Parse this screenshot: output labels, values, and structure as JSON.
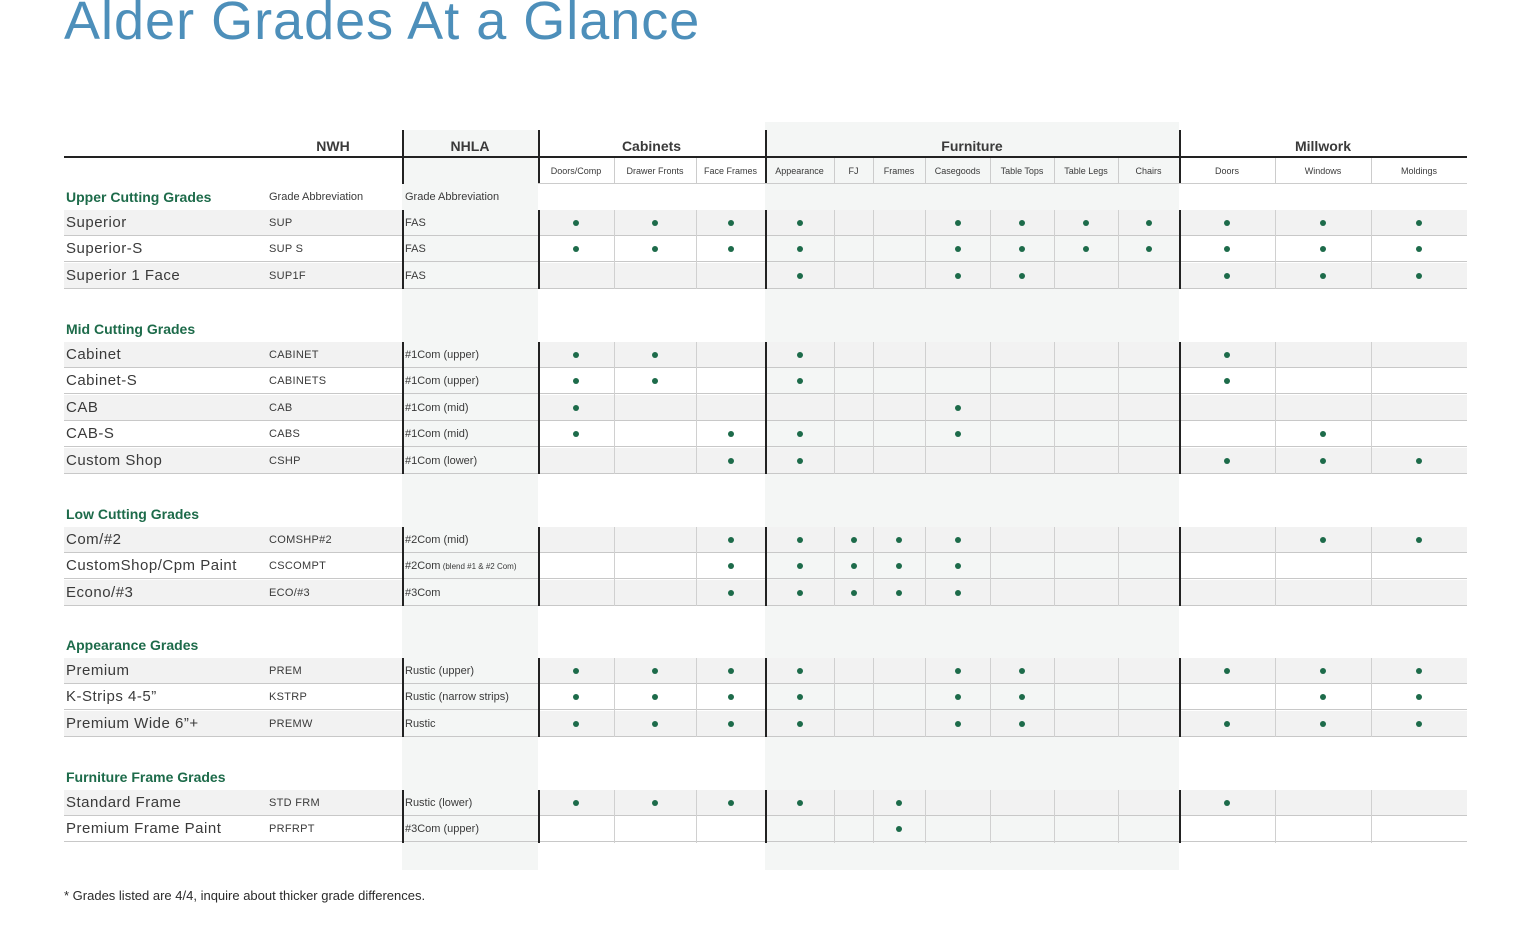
{
  "title": "Alder Grades At a Glance",
  "colors": {
    "title": "#4d8fba",
    "accent": "#1d6b4a",
    "stripe": "#f2f2f2",
    "band": "#f4f6f5"
  },
  "groups": [
    {
      "key": "nwh",
      "label": "NWH"
    },
    {
      "key": "nhla",
      "label": "NHLA"
    },
    {
      "key": "cabinets",
      "label": "Cabinets"
    },
    {
      "key": "furniture",
      "label": "Furniture"
    },
    {
      "key": "millwork",
      "label": "Millwork"
    }
  ],
  "columns": [
    "Doors/Comp",
    "Drawer Fronts",
    "Face Frames",
    "Appearance",
    "FJ",
    "Frames",
    "Casegoods",
    "Table Tops",
    "Table Legs",
    "Chairs",
    "Doors",
    "Windows",
    "Moldings"
  ],
  "abbr_header": {
    "nwh": "Grade Abbreviation",
    "nhla": "Grade Abbreviation"
  },
  "sections": [
    {
      "title": "Upper Cutting Grades",
      "rows": [
        {
          "name": "Superior",
          "nwh": "SUP",
          "nhla": "FAS",
          "nhla_small": "",
          "marks": [
            1,
            1,
            1,
            1,
            0,
            0,
            1,
            1,
            1,
            1,
            1,
            1,
            1
          ]
        },
        {
          "name": "Superior-S",
          "nwh": "SUP S",
          "nhla": "FAS",
          "nhla_small": "",
          "marks": [
            1,
            1,
            1,
            1,
            0,
            0,
            1,
            1,
            1,
            1,
            1,
            1,
            1
          ]
        },
        {
          "name": "Superior 1 Face",
          "nwh": "SUP1F",
          "nhla": "FAS",
          "nhla_small": "",
          "marks": [
            0,
            0,
            0,
            1,
            0,
            0,
            1,
            1,
            0,
            0,
            1,
            1,
            1
          ]
        }
      ]
    },
    {
      "title": "Mid Cutting Grades",
      "rows": [
        {
          "name": "Cabinet",
          "nwh": "CABINET",
          "nhla": "#1Com (upper)",
          "nhla_small": "",
          "marks": [
            1,
            1,
            0,
            1,
            0,
            0,
            0,
            0,
            0,
            0,
            1,
            0,
            0
          ]
        },
        {
          "name": "Cabinet-S",
          "nwh": "CABINETS",
          "nhla": "#1Com (upper)",
          "nhla_small": "",
          "marks": [
            1,
            1,
            0,
            1,
            0,
            0,
            0,
            0,
            0,
            0,
            1,
            0,
            0
          ]
        },
        {
          "name": "CAB",
          "nwh": "CAB",
          "nhla": "#1Com (mid)",
          "nhla_small": "",
          "marks": [
            1,
            0,
            0,
            0,
            0,
            0,
            1,
            0,
            0,
            0,
            0,
            0,
            0
          ]
        },
        {
          "name": "CAB-S",
          "nwh": "CABS",
          "nhla": "#1Com (mid)",
          "nhla_small": "",
          "marks": [
            1,
            0,
            1,
            1,
            0,
            0,
            1,
            0,
            0,
            0,
            0,
            1,
            0
          ]
        },
        {
          "name": "Custom Shop",
          "nwh": "CSHP",
          "nhla": "#1Com (lower)",
          "nhla_small": "",
          "marks": [
            0,
            0,
            1,
            1,
            0,
            0,
            0,
            0,
            0,
            0,
            1,
            1,
            1
          ]
        }
      ]
    },
    {
      "title": "Low Cutting Grades",
      "rows": [
        {
          "name": "Com/#2",
          "nwh": "COMSHP#2",
          "nhla": "#2Com (mid)",
          "nhla_small": "",
          "marks": [
            0,
            0,
            1,
            1,
            1,
            1,
            1,
            0,
            0,
            0,
            0,
            1,
            1
          ]
        },
        {
          "name": "CustomShop/Cpm Paint",
          "nwh": "CSCOMPT",
          "nhla": "#2Com",
          "nhla_small": "(blend #1 & #2 Com)",
          "marks": [
            0,
            0,
            1,
            1,
            1,
            1,
            1,
            0,
            0,
            0,
            0,
            0,
            0
          ]
        },
        {
          "name": "Econo/#3",
          "nwh": "ECO/#3",
          "nhla": "#3Com",
          "nhla_small": "",
          "marks": [
            0,
            0,
            1,
            1,
            1,
            1,
            1,
            0,
            0,
            0,
            0,
            0,
            0
          ]
        }
      ]
    },
    {
      "title": "Appearance Grades",
      "rows": [
        {
          "name": "Premium",
          "nwh": "PREM",
          "nhla": "Rustic (upper)",
          "nhla_small": "",
          "marks": [
            1,
            1,
            1,
            1,
            0,
            0,
            1,
            1,
            0,
            0,
            1,
            1,
            1
          ]
        },
        {
          "name": "K-Strips 4-5”",
          "nwh": "KSTRP",
          "nhla": "Rustic (narrow strips)",
          "nhla_small": "",
          "marks": [
            1,
            1,
            1,
            1,
            0,
            0,
            1,
            1,
            0,
            0,
            0,
            1,
            1
          ]
        },
        {
          "name": "Premium Wide 6”+",
          "nwh": "PREMW",
          "nhla": "Rustic",
          "nhla_small": "",
          "marks": [
            1,
            1,
            1,
            1,
            0,
            0,
            1,
            1,
            0,
            0,
            1,
            1,
            1
          ]
        }
      ]
    },
    {
      "title": "Furniture Frame Grades",
      "rows": [
        {
          "name": "Standard Frame",
          "nwh": "STD FRM",
          "nhla": "Rustic (lower)",
          "nhla_small": "",
          "marks": [
            1,
            1,
            1,
            1,
            0,
            1,
            0,
            0,
            0,
            0,
            1,
            0,
            0
          ]
        },
        {
          "name": "Premium Frame Paint",
          "nwh": "PRFRPT",
          "nhla": "#3Com (upper)",
          "nhla_small": "",
          "marks": [
            0,
            0,
            0,
            0,
            0,
            1,
            0,
            0,
            0,
            0,
            0,
            0,
            0
          ]
        }
      ]
    }
  ],
  "footnote": "* Grades listed are 4/4, inquire about thicker grade differences."
}
